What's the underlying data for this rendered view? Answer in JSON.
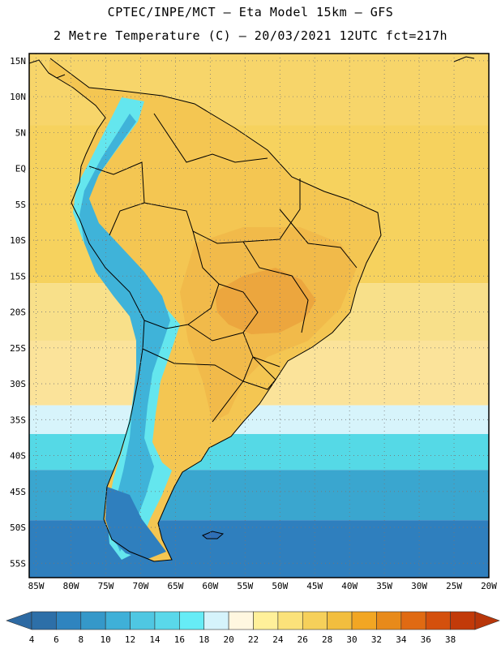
{
  "header": {
    "line1": "CPTEC/INPE/MCT –  Eta Model 15km – GFS",
    "line2": "2 Metre Temperature (C) – 20/03/2021 12UTC fct=217h"
  },
  "map": {
    "lon_range": [
      -86,
      -20
    ],
    "lat_range": [
      -57,
      16
    ],
    "lat_ticks": [
      {
        "value": 15,
        "label": "15N"
      },
      {
        "value": 10,
        "label": "10N"
      },
      {
        "value": 5,
        "label": "5N"
      },
      {
        "value": 0,
        "label": "EQ"
      },
      {
        "value": -5,
        "label": "5S"
      },
      {
        "value": -10,
        "label": "10S"
      },
      {
        "value": -15,
        "label": "15S"
      },
      {
        "value": -20,
        "label": "20S"
      },
      {
        "value": -25,
        "label": "25S"
      },
      {
        "value": -30,
        "label": "30S"
      },
      {
        "value": -35,
        "label": "35S"
      },
      {
        "value": -40,
        "label": "40S"
      },
      {
        "value": -45,
        "label": "45S"
      },
      {
        "value": -50,
        "label": "50S"
      },
      {
        "value": -55,
        "label": "55S"
      }
    ],
    "lon_ticks": [
      {
        "value": -85,
        "label": "85W"
      },
      {
        "value": -80,
        "label": "80W"
      },
      {
        "value": -75,
        "label": "75W"
      },
      {
        "value": -70,
        "label": "70W"
      },
      {
        "value": -65,
        "label": "65W"
      },
      {
        "value": -60,
        "label": "60W"
      },
      {
        "value": -55,
        "label": "55W"
      },
      {
        "value": -50,
        "label": "50W"
      },
      {
        "value": -45,
        "label": "45W"
      },
      {
        "value": -40,
        "label": "40W"
      },
      {
        "value": -35,
        "label": "35W"
      },
      {
        "value": -30,
        "label": "30W"
      },
      {
        "value": -25,
        "label": "25W"
      },
      {
        "value": -20,
        "label": "20W"
      }
    ],
    "temperature_zones": [
      {
        "name": "north-ocean",
        "lat_from": 16,
        "lat_to": 6,
        "color": "#f7d56a"
      },
      {
        "name": "equatorial-ocean",
        "lat_from": 6,
        "lat_to": -16,
        "color": "#f6d25e"
      },
      {
        "name": "tropical-ocean",
        "lat_from": -16,
        "lat_to": -24,
        "color": "#f8e08a"
      },
      {
        "name": "subtropical-ocean",
        "lat_from": -24,
        "lat_to": -33,
        "color": "#fbe39a"
      },
      {
        "name": "mid-ocean",
        "lat_from": -33,
        "lat_to": -37,
        "color": "#d7f4fb"
      },
      {
        "name": "cool-ocean",
        "lat_from": -37,
        "lat_to": -42,
        "color": "#55d9e6"
      },
      {
        "name": "cold-ocean",
        "lat_from": -42,
        "lat_to": -49,
        "color": "#3aa6cf"
      },
      {
        "name": "polar-ocean",
        "lat_from": -49,
        "lat_to": -57,
        "color": "#2f7fbe"
      }
    ],
    "land_color": "#f4c652",
    "hot_core_color": "#eba23c",
    "andes_colors": [
      "#64e6ee",
      "#3fb3d9",
      "#2f7fbe"
    ]
  },
  "colorbar": {
    "colors": [
      "#2d6fa8",
      "#2f84bf",
      "#3598c9",
      "#3fb0d8",
      "#4fc7e2",
      "#5ad8ea",
      "#66ecf6",
      "#d5f3fb",
      "#fff7e0",
      "#fff09a",
      "#fbe27a",
      "#f6d05a",
      "#f2be3e",
      "#f2a623",
      "#e88a1a",
      "#e06a12",
      "#d4500d",
      "#c23a09"
    ],
    "labels": [
      "4",
      "6",
      "8",
      "10",
      "12",
      "14",
      "16",
      "18",
      "20",
      "22",
      "24",
      "26",
      "28",
      "30",
      "32",
      "34",
      "36",
      "38"
    ],
    "low_arrow_color": "#2d6aa3",
    "high_arrow_color": "#b8360a"
  }
}
